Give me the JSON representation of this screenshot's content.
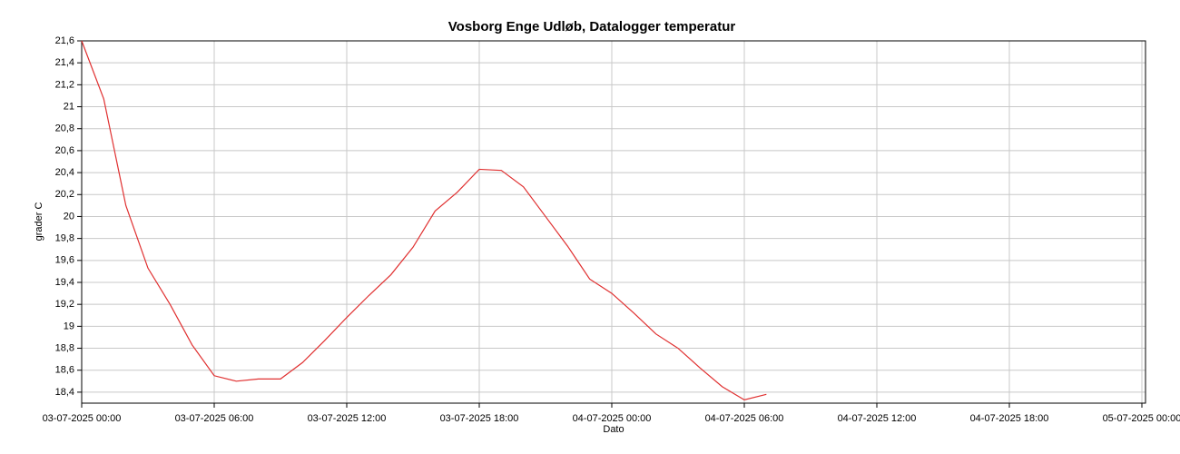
{
  "chart_data": {
    "type": "line",
    "title": "Vosborg Enge Udløb, Datalogger temperatur",
    "x_label": "Dato",
    "y_label": "grader C",
    "x": [
      "03-07-2025 00:00",
      "03-07-2025 01:00",
      "03-07-2025 02:00",
      "03-07-2025 03:00",
      "03-07-2025 04:00",
      "03-07-2025 05:00",
      "03-07-2025 06:00",
      "03-07-2025 07:00",
      "03-07-2025 08:00",
      "03-07-2025 09:00",
      "03-07-2025 10:00",
      "03-07-2025 11:00",
      "03-07-2025 12:00",
      "03-07-2025 13:00",
      "03-07-2025 14:00",
      "03-07-2025 15:00",
      "03-07-2025 16:00",
      "03-07-2025 17:00",
      "03-07-2025 18:00",
      "03-07-2025 19:00",
      "03-07-2025 20:00",
      "03-07-2025 21:00",
      "03-07-2025 22:00",
      "03-07-2025 23:00",
      "04-07-2025 00:00",
      "04-07-2025 01:00",
      "04-07-2025 02:00",
      "04-07-2025 03:00",
      "04-07-2025 04:00",
      "04-07-2025 05:00",
      "04-07-2025 06:00",
      "04-07-2025 07:00"
    ],
    "series": [
      {
        "name": "grader C",
        "color": "#e03030",
        "values": [
          21.6,
          21.07,
          20.1,
          19.53,
          19.2,
          18.83,
          18.55,
          18.5,
          18.52,
          18.52,
          18.67,
          18.87,
          19.08,
          19.28,
          19.47,
          19.72,
          20.05,
          20.22,
          20.43,
          20.42,
          20.27,
          20.0,
          19.73,
          19.43,
          19.3,
          19.12,
          18.93,
          18.8,
          18.62,
          18.45,
          18.33,
          18.38
        ]
      }
    ],
    "xlim": [
      "03-07-2025 00:00",
      "05-07-2025 00:00"
    ],
    "xticks": [
      "03-07-2025 00:00",
      "03-07-2025 06:00",
      "03-07-2025 12:00",
      "03-07-2025 18:00",
      "04-07-2025 00:00",
      "04-07-2025 06:00",
      "04-07-2025 12:00",
      "04-07-2025 18:00",
      "05-07-2025 00:00"
    ],
    "ylim": [
      18.3,
      21.6
    ],
    "yticks": [
      {
        "value": 18.4,
        "label": "18,4"
      },
      {
        "value": 18.6,
        "label": "18,6"
      },
      {
        "value": 18.8,
        "label": "18,8"
      },
      19,
      {
        "value": 19.2,
        "label": "19,2"
      },
      {
        "value": 19.4,
        "label": "19,4"
      },
      {
        "value": 19.6,
        "label": "19,6"
      },
      {
        "value": 19.8,
        "label": "19,8"
      },
      20,
      {
        "value": 20.2,
        "label": "20,2"
      },
      {
        "value": 20.4,
        "label": "20,4"
      },
      {
        "value": 20.6,
        "label": "20,6"
      },
      {
        "value": 20.8,
        "label": "20,8"
      },
      21,
      {
        "value": 21.2,
        "label": "21,2"
      },
      {
        "value": 21.4,
        "label": "21,4"
      },
      {
        "value": 21.6,
        "label": "21,6"
      }
    ],
    "grid": true
  }
}
